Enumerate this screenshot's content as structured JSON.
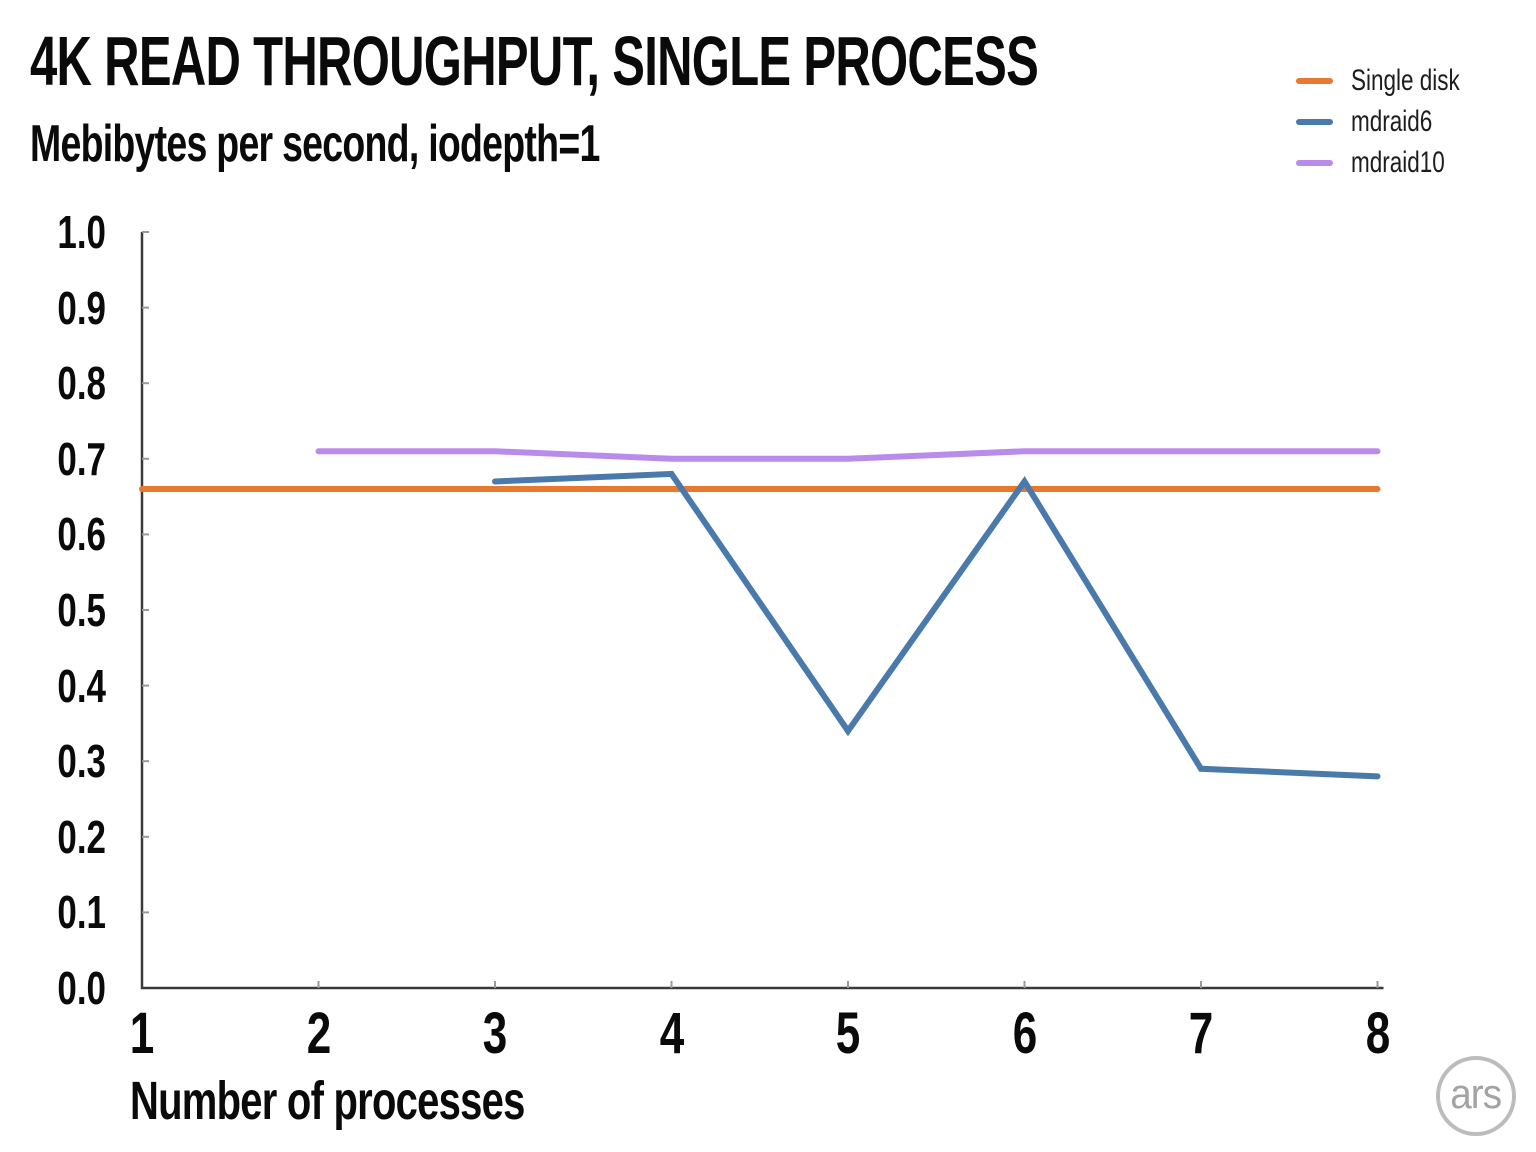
{
  "page": {
    "background": "#ffffff"
  },
  "header": {
    "title": "4K READ THROUGHPUT, SINGLE PROCESS",
    "subtitle": "Mebibytes per second, iodepth=1"
  },
  "legend": {
    "position": "top-right",
    "items": [
      {
        "label": "Single disk",
        "color": "#e87a2f"
      },
      {
        "label": "mdraid6",
        "color": "#4a79ac"
      },
      {
        "label": "mdraid10",
        "color": "#b98cec"
      }
    ]
  },
  "chart_data": {
    "type": "line",
    "title": "4K READ THROUGHPUT, SINGLE PROCESS",
    "subtitle": "Mebibytes per second, iodepth=1",
    "xlabel": "Number of processes",
    "ylabel": "Mebibytes per second",
    "xlim": [
      1,
      8
    ],
    "ylim": [
      0.0,
      1.0
    ],
    "grid": false,
    "legend_position": "top-right",
    "x_ticks": [
      1,
      2,
      3,
      4,
      5,
      6,
      7,
      8
    ],
    "y_tick_values": [
      0.0,
      0.1,
      0.2,
      0.3,
      0.4,
      0.5,
      0.6,
      0.7,
      0.8,
      0.9,
      1.0
    ],
    "y_tick_labels": [
      "0.0",
      "0.1",
      "0.2",
      "0.3",
      "0.4",
      "0.5",
      "0.6",
      "0.7",
      "0.8",
      "0.9",
      "1.0"
    ],
    "series": [
      {
        "name": "Single disk",
        "color": "#e87a2f",
        "x": [
          1,
          2,
          3,
          4,
          5,
          6,
          7,
          8
        ],
        "y": [
          0.66,
          0.66,
          0.66,
          0.66,
          0.66,
          0.66,
          0.66,
          0.66
        ]
      },
      {
        "name": "mdraid6",
        "color": "#4a79ac",
        "x": [
          3,
          4,
          5,
          6,
          7,
          8
        ],
        "y": [
          0.67,
          0.68,
          0.34,
          0.67,
          0.29,
          0.28
        ]
      },
      {
        "name": "mdraid10",
        "color": "#b98cec",
        "x": [
          2,
          3,
          4,
          5,
          6,
          7,
          8
        ],
        "y": [
          0.71,
          0.71,
          0.7,
          0.7,
          0.71,
          0.71,
          0.71
        ]
      }
    ],
    "axis_color": "#3a3a3a",
    "tick_color": "#999999"
  },
  "footer": {
    "logo_text": "ars"
  }
}
